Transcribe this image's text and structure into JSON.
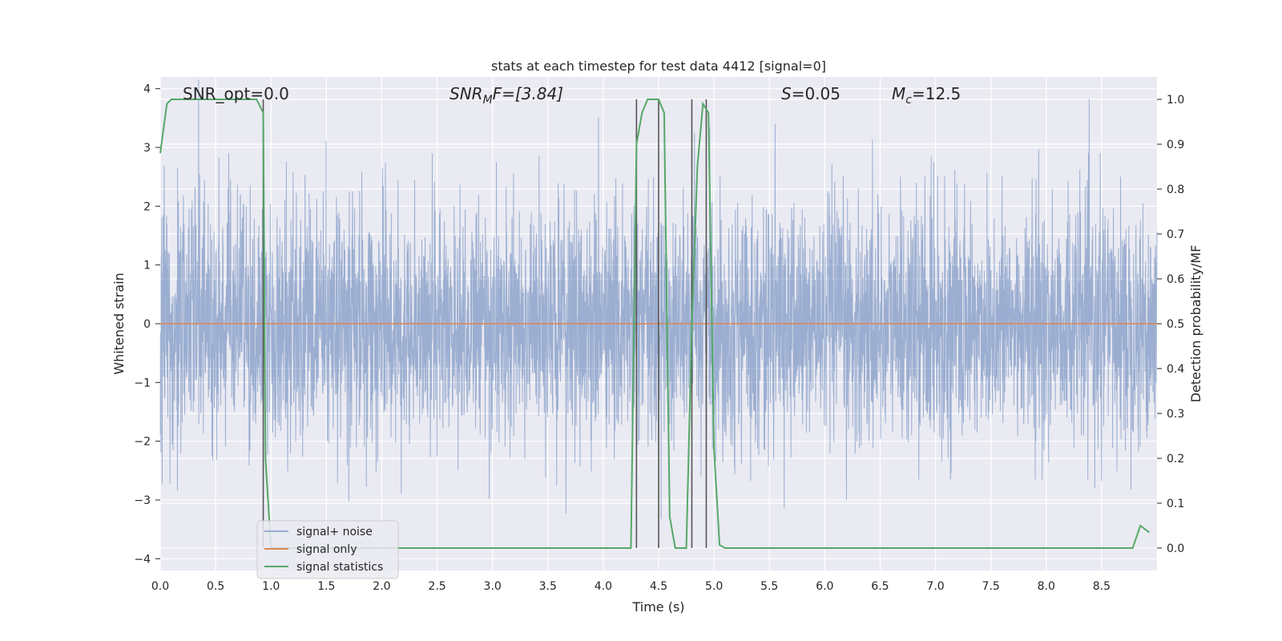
{
  "chart_data": {
    "type": "line",
    "title": "stats at each timestep for test data 4412 [signal=0]",
    "xlabel": "Time (s)",
    "ylabel": "Whitened strain",
    "y2label": "Detection probability/MF",
    "xlim": [
      0,
      9
    ],
    "ylim": [
      -4.2,
      4.2
    ],
    "y2lim": [
      -0.05,
      1.05
    ],
    "xticks": [
      0.0,
      0.5,
      1.0,
      1.5,
      2.0,
      2.5,
      3.0,
      3.5,
      4.0,
      4.5,
      5.0,
      5.5,
      6.0,
      6.5,
      7.0,
      7.5,
      8.0,
      8.5
    ],
    "xtick_labels": [
      "0.0",
      "0.5",
      "1.0",
      "1.5",
      "2.0",
      "2.5",
      "3.0",
      "3.5",
      "4.0",
      "4.5",
      "5.0",
      "5.5",
      "6.0",
      "6.5",
      "7.0",
      "7.5",
      "8.0",
      "8.5"
    ],
    "yticks": [
      -4,
      -3,
      -2,
      -1,
      0,
      1,
      2,
      3,
      4
    ],
    "ytick_labels": [
      "−4",
      "−3",
      "−2",
      "−1",
      "0",
      "1",
      "2",
      "3",
      "4"
    ],
    "y2ticks": [
      0.0,
      0.1,
      0.2,
      0.3,
      0.4,
      0.5,
      0.6,
      0.7,
      0.8,
      0.9,
      1.0
    ],
    "y2tick_labels": [
      "0.0",
      "0.1",
      "0.2",
      "0.3",
      "0.4",
      "0.5",
      "0.6",
      "0.7",
      "0.8",
      "0.9",
      "1.0"
    ],
    "grid": true,
    "legend_position": "lower-left",
    "annotations": {
      "snr_opt": "SNR_opt=0.0",
      "snr_mf_main": "SNR",
      "snr_mf_sub": "M",
      "snr_mf_rest": "F=[3.84]",
      "s_main": "S",
      "s_rest": "=0.05",
      "mc_main": "M",
      "mc_sub": "c",
      "mc_rest": "=12.5"
    },
    "series": [
      {
        "name": "signal+ noise",
        "color": "#4c72b0",
        "axis": "left",
        "description": "whitened strain noise, approx. gaussian amplitude",
        "noise_sigma": 1.0,
        "x_range": [
          0,
          9
        ]
      },
      {
        "name": "signal only",
        "color": "#dd8452",
        "axis": "left",
        "x": [
          0,
          9
        ],
        "y": [
          0,
          0
        ]
      },
      {
        "name": "signal statistics",
        "color": "#55a868",
        "axis": "right",
        "x": [
          0.0,
          0.06,
          0.1,
          0.2,
          0.3,
          0.5,
          0.7,
          0.87,
          0.93,
          0.95,
          1.0,
          1.5,
          2.0,
          3.0,
          4.0,
          4.25,
          4.3,
          4.35,
          4.4,
          4.45,
          4.5,
          4.55,
          4.6,
          4.65,
          4.7,
          4.75,
          4.8,
          4.85,
          4.9,
          4.95,
          5.0,
          5.05,
          5.1,
          5.5,
          6.0,
          7.0,
          8.0,
          8.78,
          8.85,
          8.93
        ],
        "y": [
          0.88,
          0.99,
          1.0,
          1.0,
          1.0,
          1.0,
          1.0,
          1.0,
          0.97,
          0.2,
          0.0,
          0.0,
          0.0,
          0.0,
          0.0,
          0.0,
          0.9,
          0.97,
          1.0,
          1.0,
          1.0,
          0.97,
          0.07,
          0.0,
          0.0,
          0.0,
          0.5,
          0.85,
          0.99,
          0.97,
          0.22,
          0.007,
          0.0,
          0.0,
          0.0,
          0.0,
          0.0,
          0.0,
          0.05,
          0.035
        ]
      }
    ],
    "vertical_lines": [
      {
        "x": 0.93,
        "top": 1.0
      },
      {
        "x": 4.3,
        "top": 1.0
      },
      {
        "x": 4.5,
        "top": 1.0
      },
      {
        "x": 4.8,
        "top": 1.0
      },
      {
        "x": 4.93,
        "top": 1.0
      }
    ],
    "vline_color": "#555555"
  }
}
